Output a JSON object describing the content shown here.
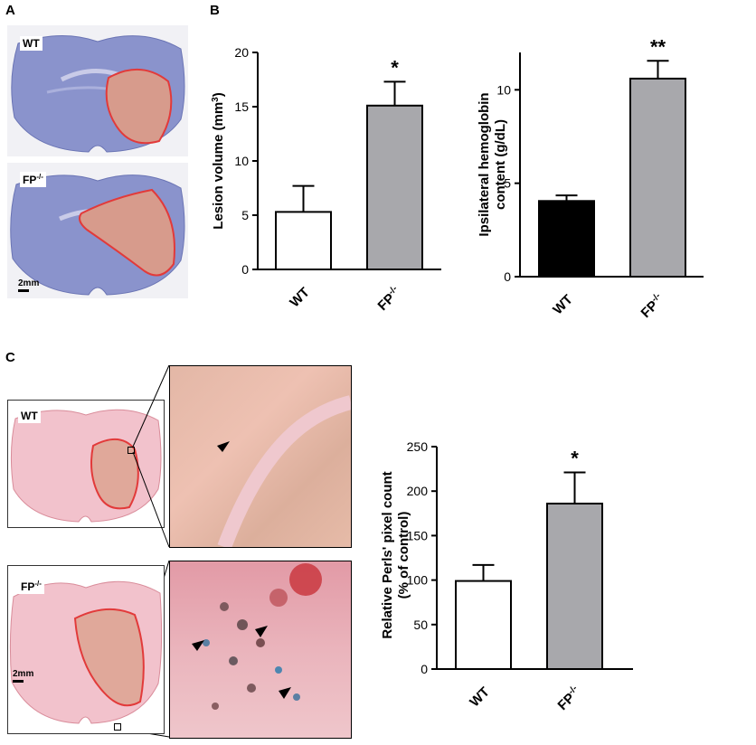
{
  "panels": {
    "a": "A",
    "b": "B",
    "c": "C"
  },
  "sections": {
    "wt": "WT",
    "fp": "FP",
    "fp_sup": "-/-",
    "scale_a": "2mm",
    "scale_c": "2mm"
  },
  "colors": {
    "wt_lesion_bar": "#ffffff",
    "fp_bar": "#a8a8ac",
    "wt_hemoglobin_bar": "#000000",
    "lesion_outline": "#e23a3a",
    "nissl_stain": "#8a93cc",
    "perls_stain": "#f2b9c6"
  },
  "chart_data": [
    {
      "type": "bar",
      "panel": "B",
      "categories": [
        "WT",
        "FP-/-"
      ],
      "values": [
        5.3,
        15.1
      ],
      "errors": [
        2.4,
        2.2
      ],
      "significance": [
        "",
        "*"
      ],
      "ylabel": "Lesion volume (mm3)",
      "ylim": [
        0,
        20
      ],
      "yticks": [
        0,
        5,
        10,
        15,
        20
      ]
    },
    {
      "type": "bar",
      "panel": "B",
      "categories": [
        "WT",
        "FP-/-"
      ],
      "values": [
        4.05,
        10.6
      ],
      "errors": [
        0.3,
        0.95
      ],
      "significance": [
        "",
        "**"
      ],
      "ylabel": "Ipsilateral hemoglobin content (g/dL)",
      "ylim": [
        0,
        12
      ],
      "yticks": [
        0,
        5,
        10
      ]
    },
    {
      "type": "bar",
      "panel": "C",
      "categories": [
        "WT",
        "FP-/-"
      ],
      "values": [
        99,
        186
      ],
      "errors": [
        18,
        35
      ],
      "significance": [
        "",
        "*"
      ],
      "ylabel": "Relative Perls' pixel count (% of control)",
      "ylim": [
        0,
        250
      ],
      "yticks": [
        0,
        50,
        100,
        150,
        200,
        250
      ]
    }
  ]
}
